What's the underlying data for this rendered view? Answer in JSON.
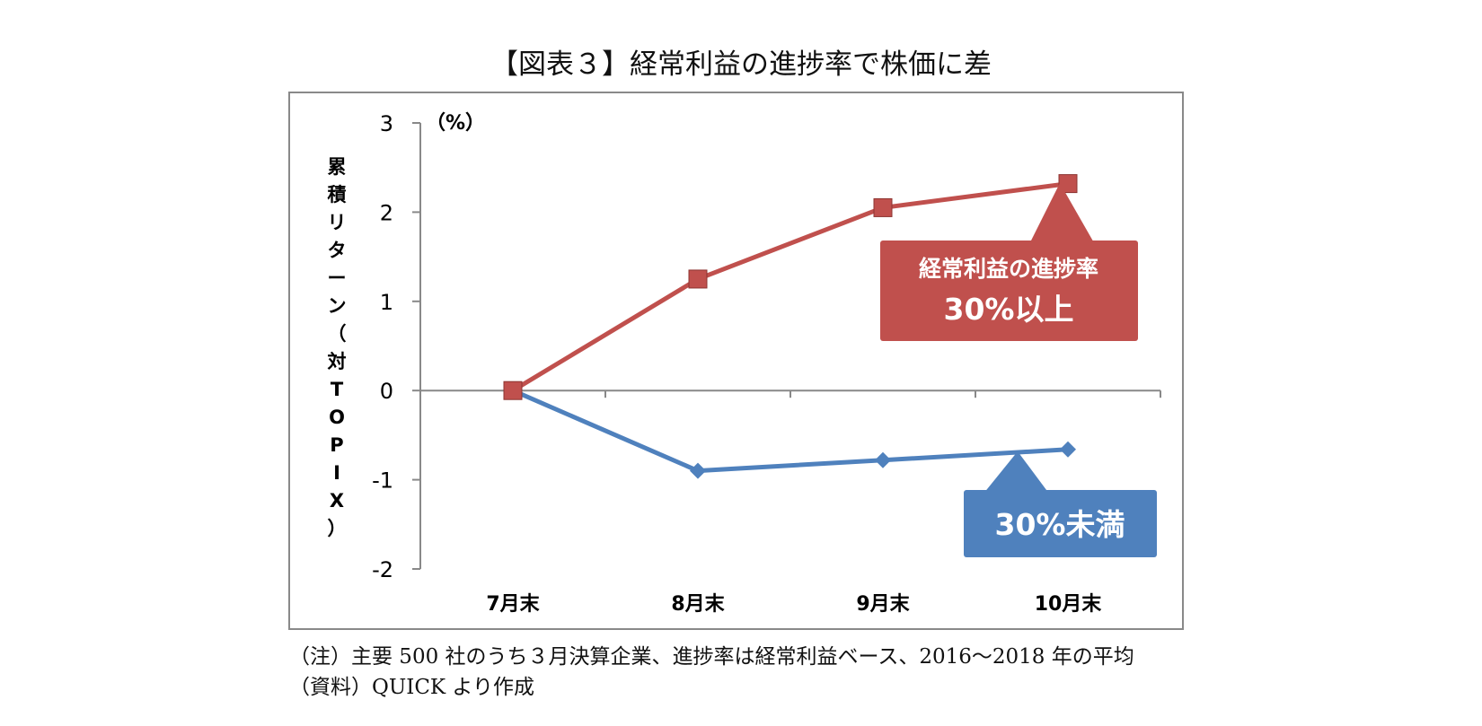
{
  "title": "【図表３】経常利益の進捗率で株価に差",
  "chart_data": {
    "type": "line",
    "categories": [
      "7月末",
      "8月末",
      "9月末",
      "10月末"
    ],
    "series": [
      {
        "name": "経常利益の進捗率30%以上",
        "color": "#c0504d",
        "marker": "square",
        "values": [
          0,
          1.25,
          2.05,
          2.32
        ]
      },
      {
        "name": "30%未満",
        "color": "#4f81bd",
        "marker": "diamond",
        "values": [
          0,
          -0.9,
          -0.78,
          -0.66
        ]
      }
    ],
    "ylim": [
      -2,
      3
    ],
    "yticks": [
      "3",
      "2",
      "1",
      "0",
      "-1",
      "-2"
    ],
    "unit_label": "（%）",
    "ylabel": [
      "累",
      "積",
      "リ",
      "タ",
      "ー",
      "ン",
      "（",
      "対",
      "T",
      "O",
      "P",
      "I",
      "X",
      "）"
    ],
    "callouts": [
      {
        "lines": [
          "経常利益の進捗率",
          "30%以上"
        ],
        "color": "#c0504d"
      },
      {
        "lines": [
          "30%未満"
        ],
        "color": "#4f81bd"
      }
    ]
  },
  "notes": [
    "（注）主要 500 社のうち３月決算企業、進捗率は経常利益ベース、2016～2018 年の平均",
    "（資料）QUICK より作成"
  ]
}
